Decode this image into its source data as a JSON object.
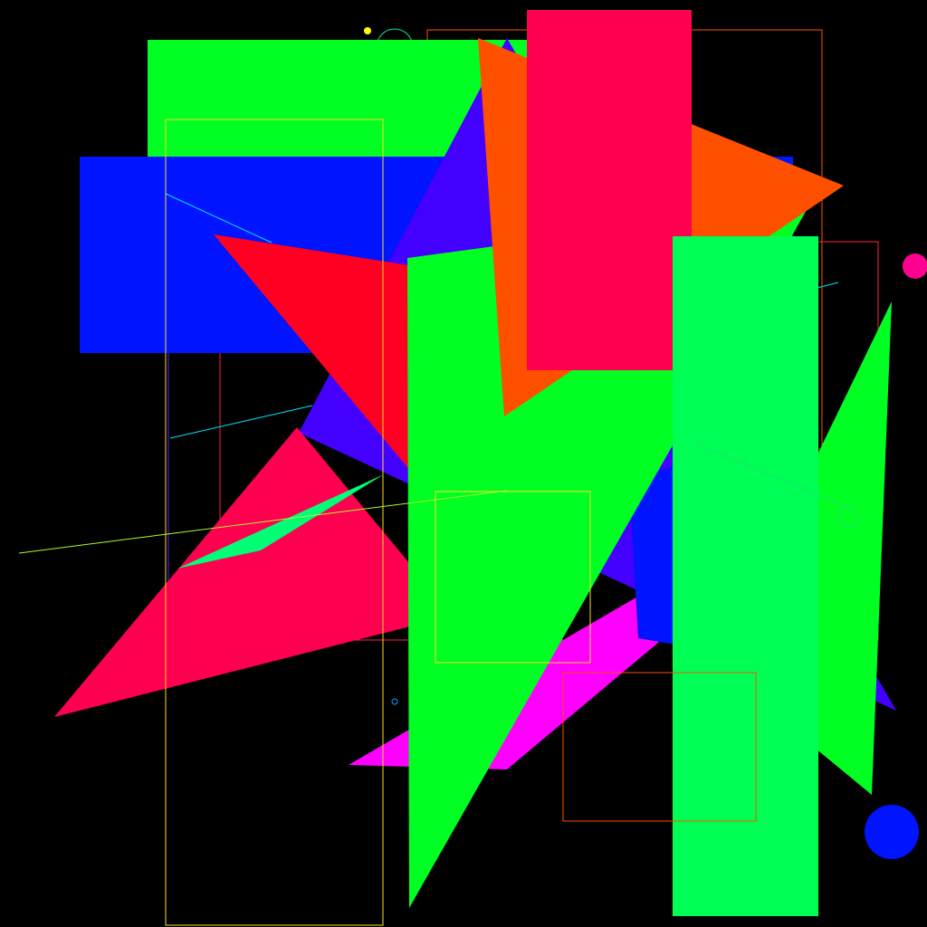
{
  "canvas": {
    "background": "#000000"
  },
  "palette": {
    "bright_green": "#00FF22",
    "spring_green": "#00FF55",
    "blue": "#0014FF",
    "violet": "#4400FF",
    "red": "#FF0022",
    "crimson": "#FF0050",
    "orange": "#FF5000",
    "magenta": "#FF00FF",
    "yellow": "#FFFF00",
    "cyan": "#00E5FF",
    "pink": "#FF0090"
  }
}
